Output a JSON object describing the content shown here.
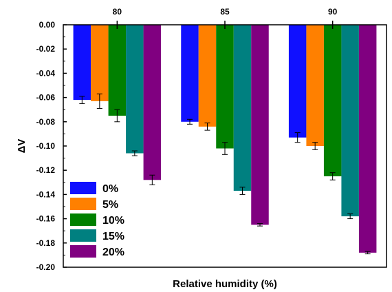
{
  "chart_data": {
    "type": "bar",
    "title": "",
    "xlabel": "Relative humidity (%)",
    "ylabel": "ΔV",
    "ylim": [
      -0.2,
      0.0
    ],
    "yticks": [
      "0.00",
      "-0.02",
      "-0.04",
      "-0.06",
      "-0.08",
      "-0.10",
      "-0.12",
      "-0.14",
      "-0.16",
      "-0.18",
      "-0.20"
    ],
    "categories": [
      "80",
      "85",
      "90"
    ],
    "x_axis_position": "top",
    "grid": false,
    "legend_position": "bottom-left",
    "series": [
      {
        "name": "0%",
        "color": "#1010ff",
        "values": [
          -0.062,
          -0.08,
          -0.093
        ],
        "errors": [
          0.003,
          0.002,
          0.004
        ]
      },
      {
        "name": "5%",
        "color": "#ff8000",
        "values": [
          -0.063,
          -0.084,
          -0.1
        ],
        "errors": [
          0.006,
          0.003,
          0.003
        ]
      },
      {
        "name": "10%",
        "color": "#008000",
        "values": [
          -0.075,
          -0.102,
          -0.125
        ],
        "errors": [
          0.005,
          0.005,
          0.003
        ]
      },
      {
        "name": "15%",
        "color": "#008080",
        "values": [
          -0.106,
          -0.137,
          -0.158
        ],
        "errors": [
          0.002,
          0.003,
          0.002
        ]
      },
      {
        "name": "20%",
        "color": "#800080",
        "values": [
          -0.128,
          -0.165,
          -0.188
        ],
        "errors": [
          0.004,
          0.001,
          0.001
        ]
      }
    ]
  }
}
